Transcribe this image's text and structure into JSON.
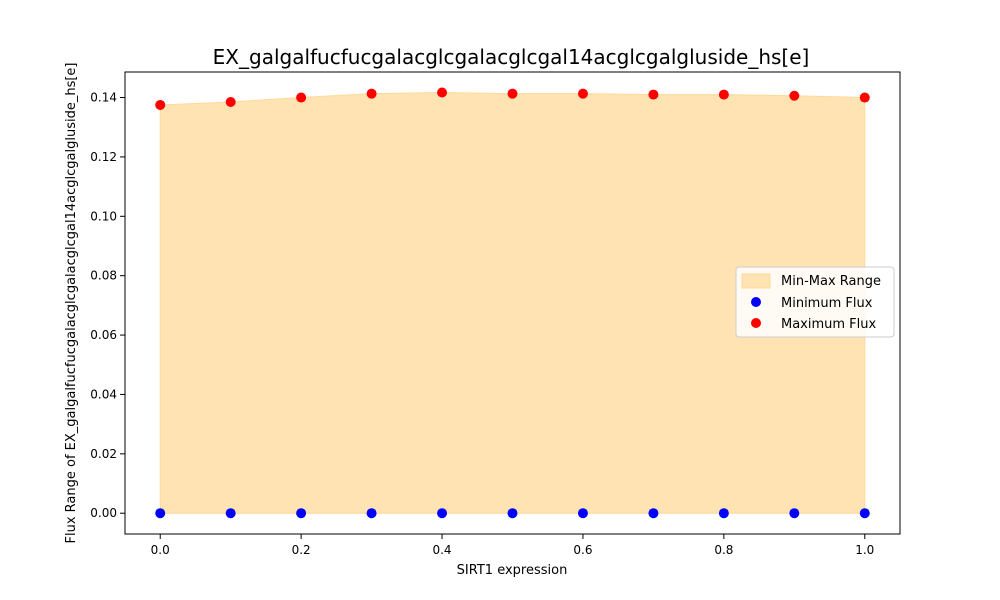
{
  "chart_data": {
    "type": "scatter",
    "title": "EX_galgalfucfucgalacglcgalacglcgal14acglcgalgluside_hs[e]",
    "xlabel": "SIRT1 expression",
    "ylabel": "Flux Range of EX_galgalfucfucgalacglcgalacglcgal14acglcgalgluside_hs[e]",
    "xlim": [
      -0.05,
      1.05
    ],
    "ylim": [
      -0.007,
      0.1486
    ],
    "x_ticks": [
      0.0,
      0.2,
      0.4,
      0.6,
      0.8,
      1.0
    ],
    "x_tick_labels": [
      "0.0",
      "0.2",
      "0.4",
      "0.6",
      "0.8",
      "1.0"
    ],
    "y_ticks": [
      0.0,
      0.02,
      0.04,
      0.06,
      0.08,
      0.1,
      0.12,
      0.14
    ],
    "y_tick_labels": [
      "0.00",
      "0.02",
      "0.04",
      "0.06",
      "0.08",
      "0.10",
      "0.12",
      "0.14"
    ],
    "grid": false,
    "legend_position": "center-right",
    "x": [
      0.0,
      0.1,
      0.2,
      0.3,
      0.4,
      0.5,
      0.6,
      0.7,
      0.8,
      0.9,
      1.0
    ],
    "series": [
      {
        "name": "Min-Max Range",
        "kind": "fill_between",
        "color": "#ffe3b3",
        "edge_color": "#ffd99a"
      },
      {
        "name": "Minimum Flux",
        "kind": "scatter",
        "color": "#0000ff",
        "values": [
          0,
          0,
          0,
          0,
          0,
          0,
          0,
          0,
          0,
          0,
          0
        ]
      },
      {
        "name": "Maximum Flux",
        "kind": "scatter",
        "color": "#ff0000",
        "values": [
          0.1375,
          0.1385,
          0.14,
          0.1413,
          0.1417,
          0.1413,
          0.1413,
          0.141,
          0.141,
          0.1406,
          0.14
        ]
      }
    ]
  }
}
